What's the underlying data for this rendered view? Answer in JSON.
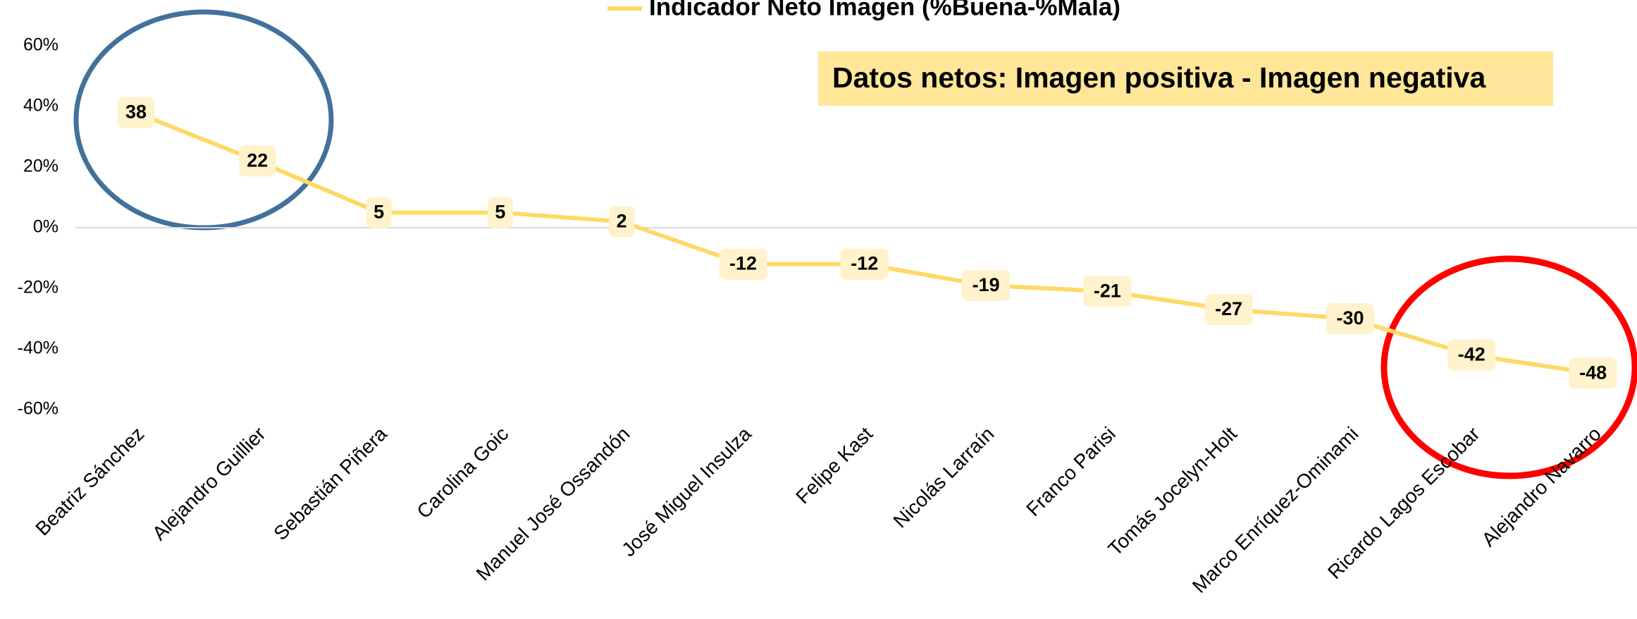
{
  "chart_data": {
    "type": "line",
    "categories": [
      "Beatriz Sánchez",
      "Alejandro Guillier",
      "Sebastián Piñera",
      "Carolina Goic",
      "Manuel José Ossandón",
      "José Miguel Insulza",
      "Felipe Kast",
      "Nicolás Larraín",
      "Franco Parisi",
      "Tomás Jocelyn-Holt",
      "Marco Enríquez-Ominami",
      "Ricardo Lagos Escobar",
      "Alejandro Navarro"
    ],
    "series": [
      {
        "name": "Indicador Neto Imagen (%Buena-%Mala)",
        "color": "#ffd966",
        "values": [
          38,
          22,
          5,
          5,
          2,
          -12,
          -12,
          -19,
          -21,
          -27,
          -30,
          -42,
          -48
        ]
      }
    ],
    "ylim": [
      -60,
      60
    ],
    "yticks": [
      {
        "value": -60,
        "label": "-60%"
      },
      {
        "value": -40,
        "label": "-40%"
      },
      {
        "value": -20,
        "label": "-20%"
      },
      {
        "value": 0,
        "label": "0%"
      },
      {
        "value": 20,
        "label": "20%"
      },
      {
        "value": 40,
        "label": "40%"
      },
      {
        "value": 60,
        "label": "60%"
      }
    ],
    "grid": false,
    "legend": "top",
    "data_label_color": "#fff2cc",
    "annotation": {
      "text": "Datos netos: Imagen positiva -  Imagen negativa",
      "color": "#ffe699"
    }
  }
}
